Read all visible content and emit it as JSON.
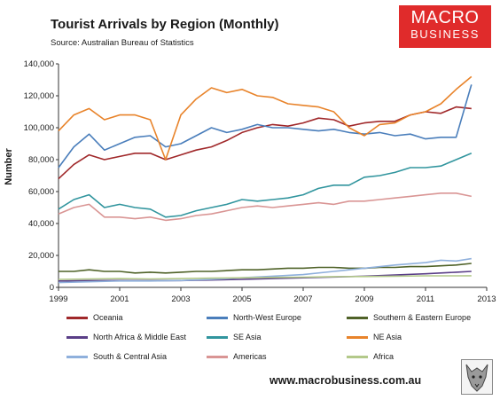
{
  "header": {
    "title": "Tourist Arrivals by Region (Monthly)",
    "subtitle": "Source: Australian Bureau of Statistics"
  },
  "logo": {
    "line1": "MACRO",
    "line2": "BUSINESS",
    "bg_color": "#e02b2b"
  },
  "footer": {
    "website": "www.macrobusiness.com.au",
    "mascot_icon": "wolf-icon"
  },
  "chart_data": {
    "type": "line",
    "ylabel": "Number",
    "xlabel": "",
    "xlim": [
      1999,
      2013
    ],
    "ylim": [
      0,
      140000
    ],
    "x_ticks": [
      "1999",
      "2001",
      "2003",
      "2005",
      "2007",
      "2009",
      "2011",
      "2013"
    ],
    "y_ticks": [
      "0",
      "20,000",
      "40,000",
      "60,000",
      "80,000",
      "100,000",
      "120,000",
      "140,000"
    ],
    "grid": "none",
    "legend_position": "bottom",
    "series": [
      {
        "name": "Oceania",
        "color": "#a0282a",
        "x": [
          1999.0,
          1999.5,
          2000.0,
          2000.5,
          2001.0,
          2001.5,
          2002.0,
          2002.5,
          2003.0,
          2003.5,
          2004.0,
          2004.5,
          2005.0,
          2005.5,
          2006.0,
          2006.5,
          2007.0,
          2007.5,
          2008.0,
          2008.5,
          2009.0,
          2009.5,
          2010.0,
          2010.5,
          2011.0,
          2011.5,
          2012.0,
          2012.5
        ],
        "y": [
          68000,
          77000,
          83000,
          80000,
          82000,
          84000,
          84000,
          80000,
          83000,
          86000,
          88000,
          92000,
          97000,
          100000,
          102000,
          101000,
          103000,
          106000,
          105000,
          101000,
          103000,
          104000,
          104000,
          108000,
          110000,
          109000,
          113000,
          112000
        ]
      },
      {
        "name": "North-West Europe",
        "color": "#4a7ebb",
        "x": [
          1999.0,
          1999.5,
          2000.0,
          2000.5,
          2001.0,
          2001.5,
          2002.0,
          2002.5,
          2003.0,
          2003.5,
          2004.0,
          2004.5,
          2005.0,
          2005.5,
          2006.0,
          2006.5,
          2007.0,
          2007.5,
          2008.0,
          2008.5,
          2009.0,
          2009.5,
          2010.0,
          2010.5,
          2011.0,
          2011.5,
          2012.0,
          2012.5
        ],
        "y": [
          75000,
          88000,
          96000,
          86000,
          90000,
          94000,
          95000,
          88000,
          90000,
          95000,
          100000,
          97000,
          99000,
          102000,
          100000,
          100000,
          99000,
          98000,
          99000,
          97000,
          96000,
          97000,
          95000,
          96000,
          93000,
          94000,
          94000,
          127000
        ]
      },
      {
        "name": "Southern & Eastern Europe",
        "color": "#4f6228",
        "x": [
          1999.0,
          1999.5,
          2000.0,
          2000.5,
          2001.0,
          2001.5,
          2002.0,
          2002.5,
          2003.0,
          2003.5,
          2004.0,
          2004.5,
          2005.0,
          2005.5,
          2006.0,
          2006.5,
          2007.0,
          2007.5,
          2008.0,
          2008.5,
          2009.0,
          2009.5,
          2010.0,
          2010.5,
          2011.0,
          2011.5,
          2012.0,
          2012.5
        ],
        "y": [
          10000,
          10000,
          11000,
          10000,
          10000,
          9000,
          9500,
          9000,
          9500,
          10000,
          10000,
          10500,
          11000,
          11000,
          11500,
          12000,
          12000,
          12500,
          12500,
          12000,
          12000,
          12500,
          12500,
          13000,
          13000,
          13500,
          14000,
          15000
        ]
      },
      {
        "name": "North Africa & Middle East",
        "color": "#5a3e87",
        "x": [
          1999.0,
          2000.0,
          2001.0,
          2002.0,
          2003.0,
          2004.0,
          2005.0,
          2006.0,
          2007.0,
          2008.0,
          2009.0,
          2010.0,
          2011.0,
          2012.0,
          2012.5
        ],
        "y": [
          4000,
          4200,
          4300,
          4200,
          4300,
          4600,
          5000,
          5500,
          6000,
          6500,
          7000,
          7800,
          8500,
          9500,
          10000
        ]
      },
      {
        "name": "SE Asia",
        "color": "#31959e",
        "x": [
          1999.0,
          1999.5,
          2000.0,
          2000.5,
          2001.0,
          2001.5,
          2002.0,
          2002.5,
          2003.0,
          2003.5,
          2004.0,
          2004.5,
          2005.0,
          2005.5,
          2006.0,
          2006.5,
          2007.0,
          2007.5,
          2008.0,
          2008.5,
          2009.0,
          2009.5,
          2010.0,
          2010.5,
          2011.0,
          2011.5,
          2012.0,
          2012.5
        ],
        "y": [
          49000,
          55000,
          58000,
          50000,
          52000,
          50000,
          49000,
          44000,
          45000,
          48000,
          50000,
          52000,
          55000,
          54000,
          55000,
          56000,
          58000,
          62000,
          64000,
          64000,
          69000,
          70000,
          72000,
          75000,
          75000,
          76000,
          80000,
          84000
        ]
      },
      {
        "name": "NE Asia",
        "color": "#e8832a",
        "x": [
          1999.0,
          1999.5,
          2000.0,
          2000.5,
          2001.0,
          2001.5,
          2002.0,
          2002.5,
          2003.0,
          2003.5,
          2004.0,
          2004.5,
          2005.0,
          2005.5,
          2006.0,
          2006.5,
          2007.0,
          2007.5,
          2008.0,
          2008.5,
          2009.0,
          2009.5,
          2010.0,
          2010.5,
          2011.0,
          2011.5,
          2012.0,
          2012.5
        ],
        "y": [
          98000,
          108000,
          112000,
          105000,
          108000,
          108000,
          105000,
          80000,
          108000,
          118000,
          125000,
          122000,
          124000,
          120000,
          119000,
          115000,
          114000,
          113000,
          110000,
          100000,
          95000,
          102000,
          103000,
          108000,
          110000,
          115000,
          124000,
          132000
        ]
      },
      {
        "name": "South & Central Asia",
        "color": "#8fb0dc",
        "x": [
          1999.0,
          2000.0,
          2001.0,
          2002.0,
          2003.0,
          2004.0,
          2005.0,
          2006.0,
          2007.0,
          2008.0,
          2009.0,
          2010.0,
          2011.0,
          2011.5,
          2012.0,
          2012.5
        ],
        "y": [
          3000,
          3500,
          4000,
          4000,
          4300,
          5000,
          6000,
          7000,
          8000,
          10000,
          12000,
          14000,
          15500,
          17000,
          16500,
          18000
        ]
      },
      {
        "name": "Americas",
        "color": "#d99594",
        "x": [
          1999.0,
          1999.5,
          2000.0,
          2000.5,
          2001.0,
          2001.5,
          2002.0,
          2002.5,
          2003.0,
          2003.5,
          2004.0,
          2004.5,
          2005.0,
          2005.5,
          2006.0,
          2006.5,
          2007.0,
          2007.5,
          2008.0,
          2008.5,
          2009.0,
          2009.5,
          2010.0,
          2010.5,
          2011.0,
          2011.5,
          2012.0,
          2012.5
        ],
        "y": [
          46000,
          50000,
          52000,
          44000,
          44000,
          43000,
          44000,
          42000,
          43000,
          45000,
          46000,
          48000,
          50000,
          51000,
          50000,
          51000,
          52000,
          53000,
          52000,
          54000,
          54000,
          55000,
          56000,
          57000,
          58000,
          59000,
          59000,
          57000
        ]
      },
      {
        "name": "Africa",
        "color": "#b3c98a",
        "x": [
          1999.0,
          2000.0,
          2001.0,
          2002.0,
          2003.0,
          2004.0,
          2005.0,
          2006.0,
          2007.0,
          2008.0,
          2009.0,
          2010.0,
          2011.0,
          2012.0,
          2012.5
        ],
        "y": [
          5000,
          5200,
          5500,
          5300,
          5500,
          5800,
          6000,
          6200,
          6400,
          6700,
          6800,
          7000,
          7200,
          7200,
          7300
        ]
      }
    ]
  }
}
